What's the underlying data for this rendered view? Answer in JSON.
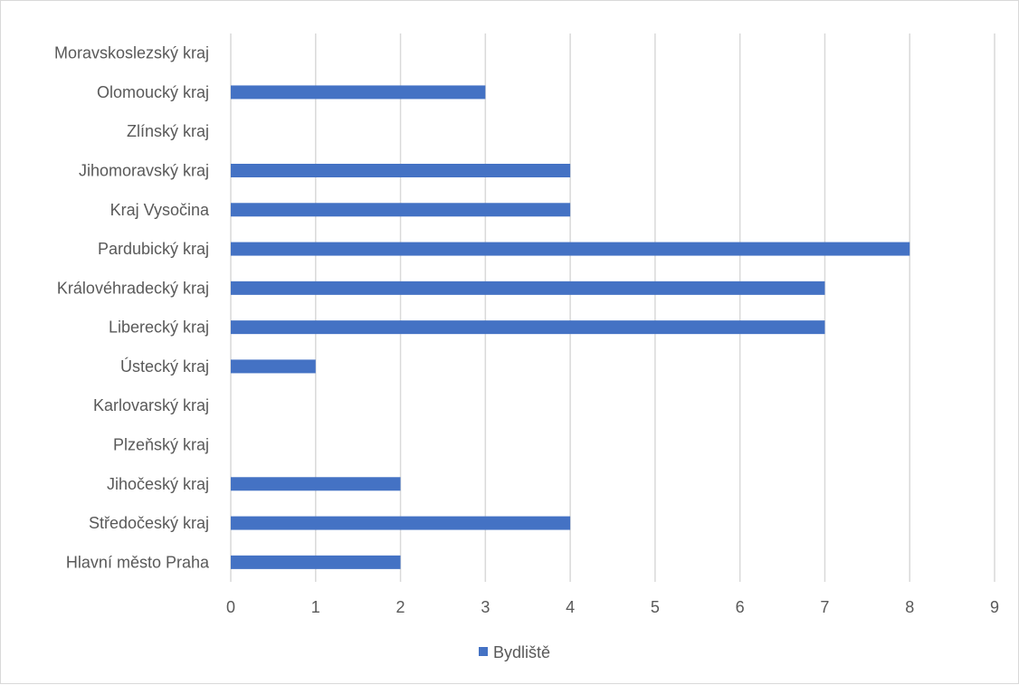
{
  "chart_data": {
    "type": "bar",
    "orientation": "horizontal",
    "categories": [
      "Hlavní město Praha",
      "Středočeský kraj",
      "Jihočeský kraj",
      "Plzeňský kraj",
      "Karlovarský kraj",
      "Ústecký kraj",
      "Liberecký kraj",
      "Královéhradecký kraj",
      "Pardubický kraj",
      "Kraj Vysočina",
      "Jihomoravský kraj",
      "Zlínský kraj",
      "Olomoucký kraj",
      "Moravskoslezský kraj"
    ],
    "series": [
      {
        "name": "Bydliště",
        "values": [
          2,
          4,
          2,
          0,
          0,
          1,
          7,
          7,
          8,
          4,
          4,
          0,
          3,
          0
        ],
        "color": "#4472c4"
      }
    ],
    "xlim": [
      0,
      9
    ],
    "xticks": [
      "0",
      "1",
      "2",
      "3",
      "4",
      "5",
      "6",
      "7",
      "8",
      "9"
    ],
    "title": "",
    "xlabel": "",
    "ylabel": "",
    "grid": true,
    "legend_position": "bottom"
  }
}
